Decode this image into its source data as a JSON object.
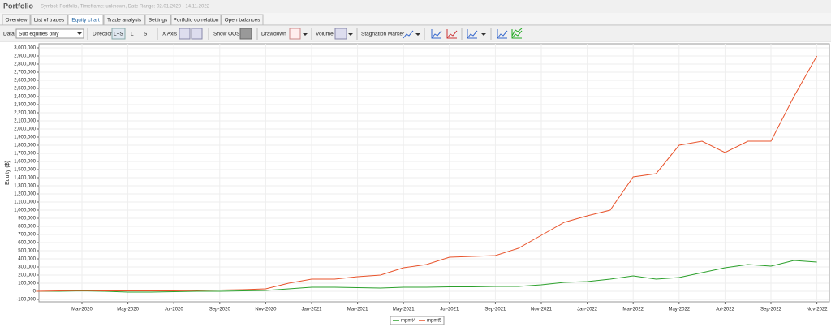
{
  "header": {
    "title": "Portfolio",
    "subtitle": "Symbol: Portfolio, Timeframe: unknown, Date Range: 02.01.2020 - 14.11.2022"
  },
  "tabs": [
    "Overview",
    "List of trades",
    "Equity chart",
    "Trade analysis",
    "Settings",
    "Portfolio correlation",
    "Open balances"
  ],
  "toolbar": {
    "data_label": "Data",
    "data_value": "Sub equities only",
    "direction": "Direction",
    "dir_ls": "L+S",
    "dir_l": "L",
    "dir_s": "S",
    "x_axis": "X Axis",
    "show_oos": "Show OOS",
    "drawdown": "Drawdown",
    "volume": "Volume",
    "stagnation": "Stagnation Marker"
  },
  "chart_data": {
    "type": "line",
    "ylabel": "Equity ($)",
    "categories": [
      null,
      null,
      "Mar-2020",
      null,
      "May-2020",
      null,
      "Jul-2020",
      null,
      "Sep-2020",
      null,
      "Nov-2020",
      null,
      "Jan-2021",
      null,
      "Mar-2021",
      null,
      "May-2021",
      null,
      "Jul-2021",
      null,
      "Sep-2021",
      null,
      "Nov-2021",
      null,
      "Jan-2022",
      null,
      "Mar-2022",
      null,
      "May-2022",
      null,
      "Jul-2022",
      null,
      "Sep-2022",
      null,
      "Nov-2022"
    ],
    "series": [
      {
        "name": "mpmt4",
        "color": "#2ca02c",
        "values": [
          0,
          0,
          5000,
          0,
          -10000,
          -10000,
          -5000,
          0,
          0,
          5000,
          10000,
          30000,
          50000,
          50000,
          45000,
          40000,
          50000,
          50000,
          55000,
          55000,
          60000,
          60000,
          80000,
          110000,
          120000,
          150000,
          190000,
          150000,
          170000,
          230000,
          290000,
          330000,
          310000,
          380000,
          360000
        ]
      },
      {
        "name": "mpmt5",
        "color": "#e8532b",
        "values": [
          0,
          5000,
          10000,
          5000,
          5000,
          5000,
          5000,
          10000,
          15000,
          20000,
          30000,
          100000,
          150000,
          150000,
          180000,
          200000,
          290000,
          330000,
          420000,
          430000,
          440000,
          530000,
          690000,
          850000,
          930000,
          1000000,
          1410000,
          1450000,
          1800000,
          1850000,
          1710000,
          1850000,
          1850000,
          2400000,
          2900000
        ]
      }
    ],
    "ylim": [
      -130000,
      3050000
    ],
    "yticks": [
      {
        "value": -100000,
        "label": "-100,000"
      },
      0,
      {
        "value": 100000,
        "label": "100,000"
      },
      {
        "value": 200000,
        "label": "200,000"
      },
      {
        "value": 300000,
        "label": "300,000"
      },
      {
        "value": 400000,
        "label": "400,000"
      },
      {
        "value": 500000,
        "label": "500,000"
      },
      {
        "value": 600000,
        "label": "600,000"
      },
      {
        "value": 700000,
        "label": "700,000"
      },
      {
        "value": 800000,
        "label": "800,000"
      },
      {
        "value": 900000,
        "label": "900,000"
      },
      {
        "value": 1000000,
        "label": "1,000,000"
      },
      {
        "value": 1100000,
        "label": "1,100,000"
      },
      {
        "value": 1200000,
        "label": "1,200,000"
      },
      {
        "value": 1300000,
        "label": "1,300,000"
      },
      {
        "value": 1400000,
        "label": "1,400,000"
      },
      {
        "value": 1500000,
        "label": "1,500,000"
      },
      {
        "value": 1600000,
        "label": "1,600,000"
      },
      {
        "value": 1700000,
        "label": "1,700,000"
      },
      {
        "value": 1800000,
        "label": "1,800,000"
      },
      {
        "value": 1900000,
        "label": "1,900,000"
      },
      {
        "value": 2000000,
        "label": "2,000,000"
      },
      {
        "value": 2100000,
        "label": "2,100,000"
      },
      {
        "value": 2200000,
        "label": "2,200,000"
      },
      {
        "value": 2300000,
        "label": "2,300,000"
      },
      {
        "value": 2400000,
        "label": "2,400,000"
      },
      {
        "value": 2500000,
        "label": "2,500,000"
      },
      {
        "value": 2600000,
        "label": "2,600,000"
      },
      {
        "value": 2700000,
        "label": "2,700,000"
      },
      {
        "value": 2800000,
        "label": "2,800,000"
      },
      {
        "value": 2900000,
        "label": "2,900,000"
      },
      {
        "value": 3000000,
        "label": "3,000,000"
      }
    ],
    "grid": true,
    "legend": "bottom"
  }
}
